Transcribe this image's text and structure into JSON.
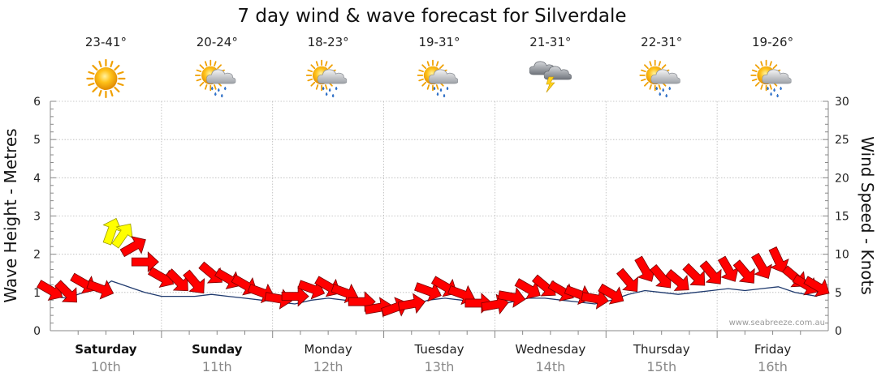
{
  "chart_data": {
    "type": "line",
    "title": "7 day wind & wave forecast for Silverdale",
    "ylabel": "Wave Height - Metres",
    "y2label": "Wind Speed - Knots",
    "ylim": [
      0,
      6
    ],
    "y2lim": [
      0,
      30
    ],
    "yticks": [
      "0",
      "1",
      "2",
      "3",
      "4",
      "5",
      "6"
    ],
    "y2ticks": [
      "0",
      "5",
      "10",
      "15",
      "20",
      "25",
      "30"
    ],
    "grid": true,
    "watermark": "www.seabreeze.com.au",
    "days": [
      {
        "name": "Saturday",
        "date": "10th",
        "temp": "23-41°",
        "icon": "sun-icon",
        "bold": true
      },
      {
        "name": "Sunday",
        "date": "11th",
        "temp": "20-24°",
        "icon": "sun-cloud-rain-icon",
        "bold": true
      },
      {
        "name": "Monday",
        "date": "12th",
        "temp": "18-23°",
        "icon": "sun-cloud-rain-icon",
        "bold": false
      },
      {
        "name": "Tuesday",
        "date": "13th",
        "temp": "19-31°",
        "icon": "sun-cloud-rain-icon",
        "bold": false
      },
      {
        "name": "Wednesday",
        "date": "14th",
        "temp": "21-31°",
        "icon": "cloud-lightning-icon",
        "bold": false
      },
      {
        "name": "Thursday",
        "date": "15th",
        "temp": "22-31°",
        "icon": "sun-cloud-rain-icon",
        "bold": false
      },
      {
        "name": "Friday",
        "date": "16th",
        "temp": "19-26°",
        "icon": "sun-cloud-rain-icon",
        "bold": false
      }
    ],
    "series": [
      {
        "x_days": [
          0.0,
          0.15,
          0.3,
          0.45,
          0.55,
          0.65,
          0.75,
          0.85,
          1.0,
          1.15,
          1.3,
          1.45,
          1.6,
          1.75,
          1.9,
          2.05,
          2.2,
          2.35,
          2.5,
          2.65,
          2.8,
          2.95,
          3.1,
          3.25,
          3.4,
          3.55,
          3.7,
          3.85,
          4.0,
          4.15,
          4.3,
          4.45,
          4.6,
          4.75,
          4.9,
          5.05,
          5.2,
          5.35,
          5.5,
          5.65,
          5.8,
          5.95,
          6.1,
          6.25,
          6.4,
          6.55,
          6.7,
          6.8,
          6.9
        ],
        "wind_knots": [
          5.3,
          5.0,
          6.2,
          5.5,
          13.0,
          12.5,
          11.0,
          9.0,
          7.0,
          6.5,
          6.3,
          7.5,
          6.8,
          6.0,
          5.0,
          4.2,
          4.5,
          5.5,
          5.8,
          5.0,
          3.8,
          3.0,
          3.0,
          3.5,
          5.2,
          5.8,
          4.8,
          3.6,
          3.4,
          4.4,
          5.5,
          5.8,
          5.2,
          4.8,
          4.2,
          4.8,
          6.5,
          8.0,
          7.0,
          6.5,
          7.2,
          7.5,
          8.0,
          7.6,
          8.4,
          9.2,
          7.0,
          6.0,
          5.8
        ],
        "wave_m": [
          0.9,
          0.85,
          1.0,
          1.1,
          1.3,
          1.2,
          1.1,
          1.0,
          0.9,
          0.9,
          0.9,
          0.95,
          0.9,
          0.85,
          0.8,
          0.75,
          0.7,
          0.8,
          0.85,
          0.8,
          0.7,
          0.6,
          0.6,
          0.65,
          0.8,
          0.85,
          0.8,
          0.7,
          0.65,
          0.75,
          0.85,
          0.85,
          0.8,
          0.75,
          0.7,
          0.8,
          0.95,
          1.05,
          1.0,
          0.95,
          1.0,
          1.05,
          1.1,
          1.05,
          1.1,
          1.15,
          1.0,
          0.95,
          0.9
        ],
        "direction_deg": [
          300,
          315,
          300,
          290,
          200,
          215,
          240,
          270,
          300,
          315,
          320,
          310,
          300,
          300,
          290,
          280,
          270,
          290,
          300,
          290,
          270,
          260,
          250,
          260,
          290,
          300,
          290,
          270,
          260,
          280,
          300,
          310,
          300,
          290,
          280,
          300,
          320,
          330,
          320,
          310,
          315,
          320,
          330,
          320,
          330,
          335,
          310,
          300,
          300
        ]
      }
    ]
  }
}
